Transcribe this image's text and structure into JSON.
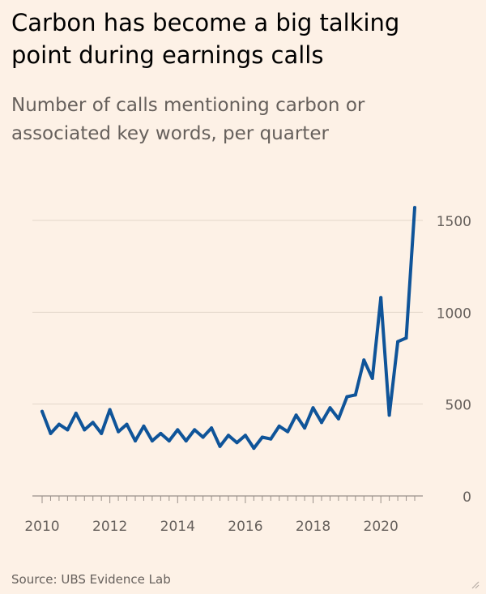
{
  "title": "Carbon has become a big talking point during earnings calls",
  "subtitle": "Number of calls mentioning carbon or associated key words, per quarter",
  "source": "Source: UBS Evidence Lab",
  "colors": {
    "background": "#fdf1e6",
    "line": "#0f5499",
    "grid": "#e2d6cb",
    "axis": "#999089",
    "text": "#66605c"
  },
  "chart_data": {
    "type": "line",
    "x_tick_labels": [
      "2010",
      "2012",
      "2014",
      "2016",
      "2018",
      "2020"
    ],
    "y_tick_labels": [
      "0",
      "500",
      "1000",
      "1500"
    ],
    "ylim": [
      0,
      1550
    ],
    "xlim": [
      2010,
      2021
    ],
    "grid": true,
    "y_axis_side": "right",
    "series": [
      {
        "x": [
          2010.0,
          2010.25,
          2010.5,
          2010.75,
          2011.0,
          2011.25,
          2011.5,
          2011.75,
          2012.0,
          2012.25,
          2012.5,
          2012.75,
          2013.0,
          2013.25,
          2013.5,
          2013.75,
          2014.0,
          2014.25,
          2014.5,
          2014.75,
          2015.0,
          2015.25,
          2015.5,
          2015.75,
          2016.0,
          2016.25,
          2016.5,
          2016.75,
          2017.0,
          2017.25,
          2017.5,
          2017.75,
          2018.0,
          2018.25,
          2018.5,
          2018.75,
          2019.0,
          2019.25,
          2019.5,
          2019.75,
          2020.0,
          2020.25,
          2020.5,
          2020.75,
          2021.0
        ],
        "values": [
          460,
          340,
          390,
          360,
          450,
          360,
          400,
          340,
          470,
          350,
          390,
          300,
          380,
          300,
          340,
          300,
          360,
          300,
          360,
          320,
          370,
          270,
          330,
          290,
          330,
          260,
          320,
          310,
          380,
          350,
          440,
          370,
          480,
          400,
          480,
          420,
          540,
          550,
          740,
          640,
          1080,
          440,
          840,
          860,
          1570
        ]
      }
    ]
  }
}
